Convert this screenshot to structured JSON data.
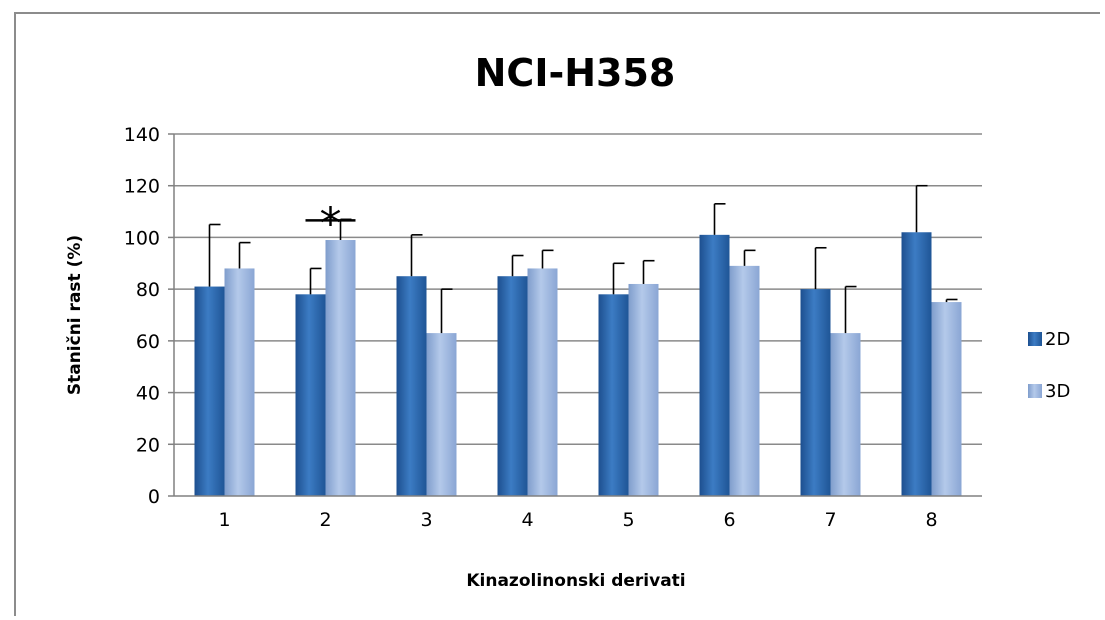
{
  "chart_data": {
    "type": "bar",
    "title": "NCI-H358",
    "xlabel": "Kinazolinonski derivati",
    "ylabel": "Stanični rast (%)",
    "categories": [
      "1",
      "2",
      "3",
      "4",
      "5",
      "6",
      "7",
      "8"
    ],
    "ylim": [
      0,
      140
    ],
    "yticks": [
      0,
      20,
      40,
      60,
      80,
      100,
      120,
      140
    ],
    "grid": true,
    "legend_position": "right",
    "series": [
      {
        "name": "2D",
        "color": "#2f6db2",
        "values": [
          81,
          78,
          85,
          85,
          78,
          101,
          80,
          102
        ],
        "errors": [
          24,
          10,
          16,
          8,
          12,
          12,
          16,
          18
        ]
      },
      {
        "name": "3D",
        "color": "#97b2dc",
        "values": [
          88,
          99,
          63,
          88,
          82,
          89,
          63,
          75
        ],
        "errors": [
          10,
          8,
          17,
          7,
          9,
          6,
          18,
          1
        ]
      }
    ],
    "annotations": [
      {
        "text": "*",
        "category": "2"
      }
    ]
  }
}
